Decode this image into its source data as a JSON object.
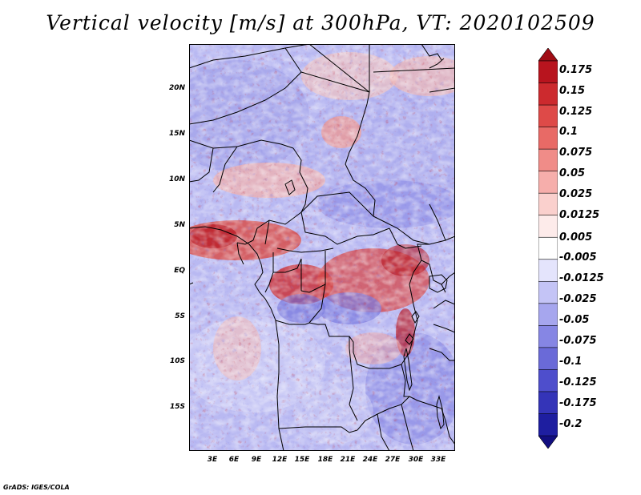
{
  "title": "Vertical velocity [m/s] at 300hPa, VT: 2020102509",
  "credit": "GrADS: IGES/COLA",
  "latitude_labels": [
    "20N",
    "15N",
    "10N",
    "5N",
    "EQ",
    "5S",
    "10S",
    "15S"
  ],
  "longitude_labels": [
    "3E",
    "6E",
    "9E",
    "12E",
    "15E",
    "18E",
    "21E",
    "24E",
    "27E",
    "30E",
    "33E"
  ],
  "colorbar": {
    "labels": [
      "0.175",
      "0.15",
      "0.125",
      "0.1",
      "0.075",
      "0.05",
      "0.025",
      "0.0125",
      "0.005",
      "-0.005",
      "-0.0125",
      "-0.025",
      "-0.05",
      "-0.075",
      "-0.1",
      "-0.125",
      "-0.175",
      "-0.2"
    ],
    "colors": [
      "#a00c14",
      "#b8141e",
      "#cc2a2e",
      "#de4a48",
      "#e86a66",
      "#f08c88",
      "#f6aeab",
      "#fad0cd",
      "#fdebea",
      "#ffffff",
      "#e4e4fc",
      "#c4c4f6",
      "#a6a6ee",
      "#8686e4",
      "#6a6ad8",
      "#4e4ecc",
      "#3434b8",
      "#1e1ea0",
      "#120e80"
    ]
  }
}
